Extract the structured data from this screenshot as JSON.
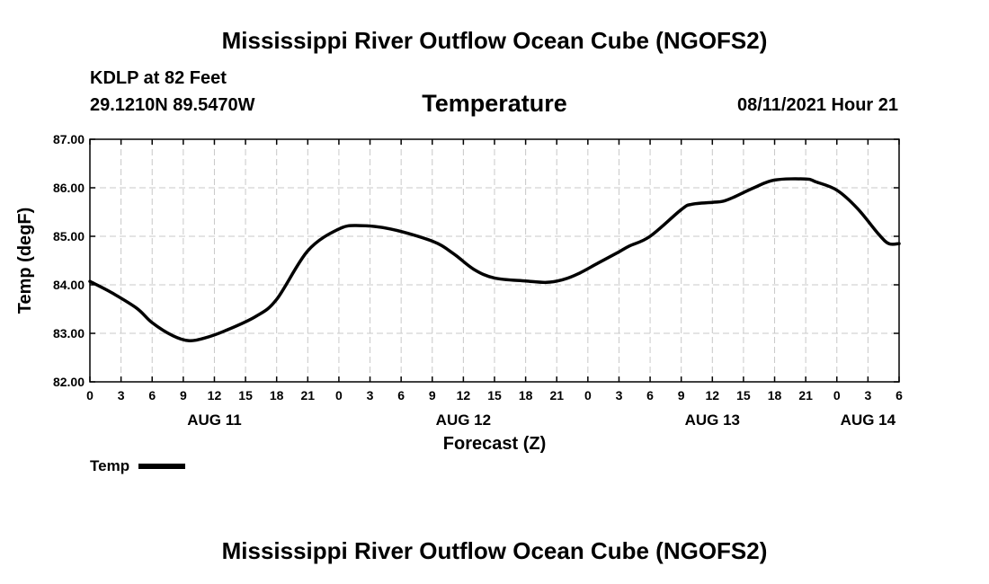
{
  "header": {
    "title_top": "Mississippi River Outflow Ocean Cube (NGOFS2)",
    "station": "KDLP at 82 Feet",
    "coords": "29.1210N  89.5470W",
    "chart_title": "Temperature",
    "timestamp": "08/11/2021 Hour 21"
  },
  "footer": {
    "title_bottom": "Mississippi River Outflow Ocean Cube (NGOFS2)"
  },
  "chart_data": {
    "type": "line",
    "title": "Temperature",
    "xlabel": "Forecast (Z)",
    "ylabel": "Temp (degF)",
    "x_unit": "hours since AUG 11 00Z",
    "xlim": [
      0,
      78
    ],
    "ylim": [
      82.0,
      87.0
    ],
    "grid": true,
    "yticks": [
      "82.00",
      "83.00",
      "84.00",
      "85.00",
      "86.00",
      "87.00"
    ],
    "yticks_values": [
      82,
      83,
      84,
      85,
      86,
      87
    ],
    "xticks_values": [
      0,
      3,
      6,
      9,
      12,
      15,
      18,
      21,
      24,
      27,
      30,
      33,
      36,
      39,
      42,
      45,
      48,
      51,
      54,
      57,
      60,
      63,
      66,
      69,
      72,
      75,
      78
    ],
    "xticks": [
      "0",
      "3",
      "6",
      "9",
      "12",
      "15",
      "18",
      "21",
      "0",
      "3",
      "6",
      "9",
      "12",
      "15",
      "18",
      "21",
      "0",
      "3",
      "6",
      "9",
      "12",
      "15",
      "18",
      "21",
      "0",
      "3",
      "6"
    ],
    "day_labels": [
      {
        "label": "AUG 11",
        "x": 12
      },
      {
        "label": "AUG 12",
        "x": 36
      },
      {
        "label": "AUG 13",
        "x": 60
      },
      {
        "label": "AUG 14",
        "x": 75
      }
    ],
    "legend": [
      {
        "name": "Temp",
        "placement": "bottom-left"
      }
    ],
    "series": [
      {
        "name": "Temp",
        "x": [
          0,
          2,
          4.5,
          6,
          8,
          9.5,
          11,
          13,
          16,
          18,
          21,
          24,
          26,
          29,
          33,
          35,
          37,
          39,
          42,
          44,
          45.5,
          47,
          49,
          51,
          52,
          54,
          57,
          58,
          60,
          61,
          62,
          64,
          66,
          69,
          70,
          72,
          74,
          76,
          77,
          78
        ],
        "y": [
          84.07,
          83.85,
          83.52,
          83.22,
          82.95,
          82.85,
          82.9,
          83.05,
          83.35,
          83.7,
          84.7,
          85.15,
          85.22,
          85.15,
          84.9,
          84.65,
          84.32,
          84.14,
          84.08,
          84.05,
          84.1,
          84.22,
          84.45,
          84.68,
          84.8,
          85.0,
          85.55,
          85.66,
          85.7,
          85.72,
          85.8,
          86.0,
          86.16,
          86.18,
          86.12,
          85.95,
          85.57,
          85.05,
          84.85,
          84.85
        ]
      }
    ]
  }
}
